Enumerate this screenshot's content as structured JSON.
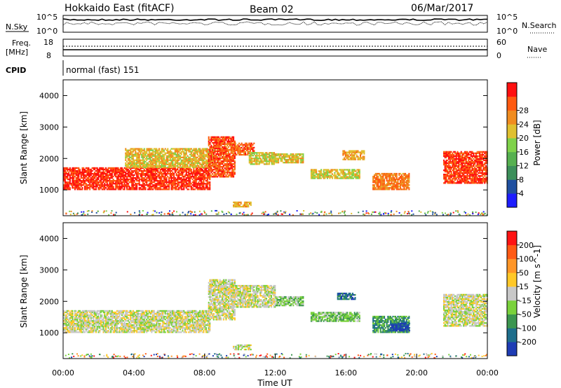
{
  "header": {
    "title": "Hokkaido East (fitACF)",
    "beam": "Beam 02",
    "date": "06/Mar/2017"
  },
  "top_panels": {
    "nsky_label": "N.Sky",
    "nsearch_label": "N.Search",
    "nsky_ticks": [
      "10^5",
      "10^0"
    ],
    "nsearch_ticks": [
      "10^5",
      "10^0"
    ],
    "freq_label_1": "Freq.",
    "freq_label_2": "[MHz]",
    "freq_ticks": [
      "18",
      "8"
    ],
    "nave_label": "Nave",
    "nave_ticks": [
      "60",
      "0"
    ],
    "cpid_label": "CPID",
    "cpid_value": "normal (fast) 151"
  },
  "chart_data": [
    {
      "type": "heatmap",
      "name": "power-panel",
      "ylabel": "Slant Range [km]",
      "ylim": [
        180,
        4500
      ],
      "yticks": [
        1000,
        2000,
        3000,
        4000
      ],
      "xlim": [
        0,
        24
      ],
      "colorbar": {
        "label": "Power [dB]",
        "ticks": [
          "4",
          "8",
          "12",
          "16",
          "20",
          "24",
          "28"
        ],
        "colors": [
          "#1e1eff",
          "#2050a0",
          "#3c8f5a",
          "#56b050",
          "#7fd24a",
          "#e0c030",
          "#f08c20",
          "#ff5a10",
          "#ff1010"
        ]
      },
      "echo_regions": [
        {
          "t0": 0.0,
          "t1": 8.3,
          "r0": 1000,
          "r1": 1720,
          "level": 7.6
        },
        {
          "t0": 3.5,
          "t1": 8.5,
          "r0": 1700,
          "r1": 2300,
          "level": 5.2
        },
        {
          "t0": 8.2,
          "t1": 9.7,
          "r0": 1400,
          "r1": 2700,
          "level": 7.2
        },
        {
          "t0": 9.5,
          "t1": 10.8,
          "r0": 2100,
          "r1": 2500,
          "level": 6.8
        },
        {
          "t0": 10.5,
          "t1": 12.0,
          "r0": 1800,
          "r1": 2200,
          "level": 4.8
        },
        {
          "t0": 12.0,
          "t1": 13.6,
          "r0": 1850,
          "r1": 2150,
          "level": 5.0
        },
        {
          "t0": 14.0,
          "t1": 16.8,
          "r0": 1350,
          "r1": 1650,
          "level": 4.8
        },
        {
          "t0": 15.8,
          "t1": 17.0,
          "r0": 1950,
          "r1": 2250,
          "level": 5.6
        },
        {
          "t0": 17.5,
          "t1": 19.6,
          "r0": 1000,
          "r1": 1500,
          "level": 6.4
        },
        {
          "t0": 21.5,
          "t1": 24.0,
          "r0": 1200,
          "r1": 2200,
          "level": 7.4
        },
        {
          "t0": 9.6,
          "t1": 10.6,
          "r0": 450,
          "r1": 600,
          "level": 5.6
        }
      ]
    },
    {
      "type": "heatmap",
      "name": "velocity-panel",
      "ylabel": "Slant Range [km]",
      "xlabel": "Time UT",
      "ylim": [
        180,
        4500
      ],
      "yticks": [
        1000,
        2000,
        3000,
        4000
      ],
      "xlim": [
        0,
        24
      ],
      "xticks": [
        0,
        4,
        8,
        12,
        16,
        20,
        24
      ],
      "xtick_labels": [
        "00:00",
        "04:00",
        "08:00",
        "12:00",
        "16:00",
        "20:00",
        "00:00"
      ],
      "colorbar": {
        "label": "Velocity [m s^-1]",
        "ticks": [
          "200",
          "100",
          "50",
          "15",
          "-15",
          "-50",
          "-100",
          "-200"
        ],
        "colors": [
          "#1e3cb4",
          "#1e6e8c",
          "#3c9650",
          "#7ad23c",
          "#c8c8c8",
          "#ffc828",
          "#ff9628",
          "#ff5a14",
          "#ff1414"
        ]
      },
      "echo_regions": [
        {
          "t0": 0.0,
          "t1": 8.3,
          "r0": 1000,
          "r1": 1720,
          "level": 4
        },
        {
          "t0": 8.2,
          "t1": 9.7,
          "r0": 1400,
          "r1": 2700,
          "level": 4
        },
        {
          "t0": 9.5,
          "t1": 12.0,
          "r0": 1800,
          "r1": 2500,
          "level": 4
        },
        {
          "t0": 12.0,
          "t1": 13.6,
          "r0": 1850,
          "r1": 2150,
          "level": 3
        },
        {
          "t0": 14.0,
          "t1": 16.8,
          "r0": 1350,
          "r1": 1650,
          "level": 3
        },
        {
          "t0": 15.5,
          "t1": 16.5,
          "r0": 2050,
          "r1": 2250,
          "level": 1
        },
        {
          "t0": 17.5,
          "t1": 19.6,
          "r0": 1000,
          "r1": 1500,
          "level": 2
        },
        {
          "t0": 18.5,
          "t1": 19.6,
          "r0": 1050,
          "r1": 1300,
          "level": 0
        },
        {
          "t0": 21.5,
          "t1": 24.0,
          "r0": 1200,
          "r1": 2200,
          "level": 4
        },
        {
          "t0": 9.6,
          "t1": 10.6,
          "r0": 450,
          "r1": 600,
          "level": 4
        }
      ]
    }
  ]
}
